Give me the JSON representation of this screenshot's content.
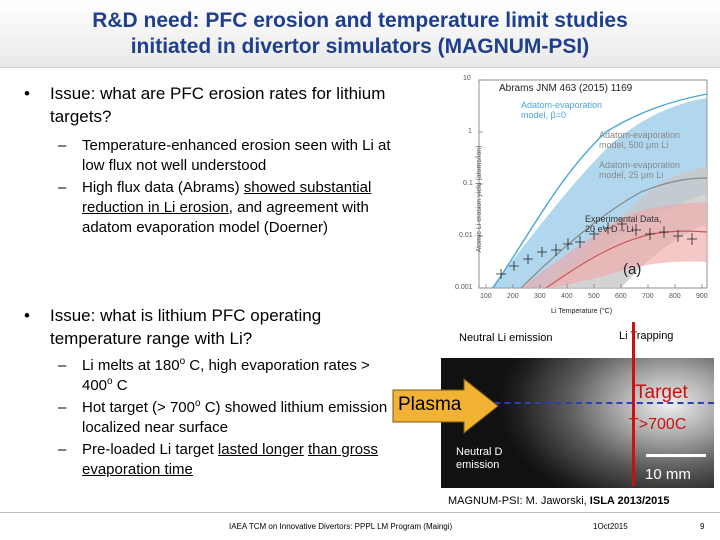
{
  "title": {
    "line1": "R&D need: PFC erosion and temperature limit studies",
    "line2": "initiated in divertor simulators (MAGNUM-PSI)"
  },
  "bullet1": {
    "marker": "•",
    "text": "Issue: what are PFC erosion rates for lithium targets?",
    "subs": [
      {
        "marker": "–",
        "text": "Temperature-enhanced erosion seen with Li at low flux not well understood"
      },
      {
        "marker": "–",
        "text_before": "High flux data (Abrams) ",
        "text_underlined": "showed substantial reduction in Li erosion",
        "text_after": ", and agreement with adatom evaporation model (Doerner)"
      }
    ]
  },
  "bullet2": {
    "marker": "•",
    "text": "Issue: what is lithium PFC operating temperature range with Li?",
    "subs": [
      {
        "marker": "–",
        "p1": "Li melts at 180",
        "sup": "o",
        "p2": " C, high evaporation rates > 400",
        "sup2": "o",
        "p3": " C"
      },
      {
        "marker": "–",
        "p1": "Hot target (> 700",
        "sup": "o",
        "p2": " C) showed lithium emission localized near surface"
      },
      {
        "marker": "–",
        "text_before": "Pre-loaded Li target ",
        "text_underlined": "lasted longer",
        "text_gap": " ",
        "text_underlined2": "than gross evaporation time"
      }
    ]
  },
  "plot": {
    "citation": "Abrams JNM 463 (2015) 1169",
    "ylabel": "Atomic Li erosion yield (atoms/ion)",
    "xlabel": "Li Temperature (°C)",
    "y_ticks": [
      "10",
      "1",
      "0.1",
      "0.01",
      "0.001"
    ],
    "x_ticks": [
      "100",
      "200",
      "300",
      "400",
      "500",
      "600",
      "700",
      "800",
      "900"
    ],
    "annot_blue_1": "Adatom-evaporation",
    "annot_blue_2": "model, β=0",
    "annot_grey_1": "Adatom-evaporation",
    "annot_grey_2": "model, 500 μm Li",
    "annot_grey_3": "Adatom-evaporation",
    "annot_grey_4": "model, 25 μm Li",
    "annot_exp_1": "Experimental Data,",
    "annot_exp_2": "20 eV D→Li",
    "panel": "(a)"
  },
  "emission": {
    "neutral_li": "Neutral Li emission",
    "li_trapping": "Li Trapping",
    "plasma": "Plasma",
    "target": "Target",
    "target_temp": "T>700C",
    "neutral_d_1": "Neutral D",
    "neutral_d_2": "emission",
    "scale": "10 mm"
  },
  "caption": {
    "prefix": "MAGNUM-PSI: M. Jaworski, ",
    "bold": "ISLA 2013/2015"
  },
  "footer": {
    "center": "IAEA TCM on Innovative Divertors: PPPL LM Program (Maingi)",
    "date": "1Oct2015",
    "page": "9"
  },
  "colors": {
    "title": "#1f3f8c",
    "arrow_fill": "#f2b233",
    "target": "#cc1010",
    "dashed_line": "#2a3fb8",
    "blue_band": "#6fb7e0",
    "grey_band": "#c8c8c8",
    "pink_band": "#f0a9a9"
  }
}
